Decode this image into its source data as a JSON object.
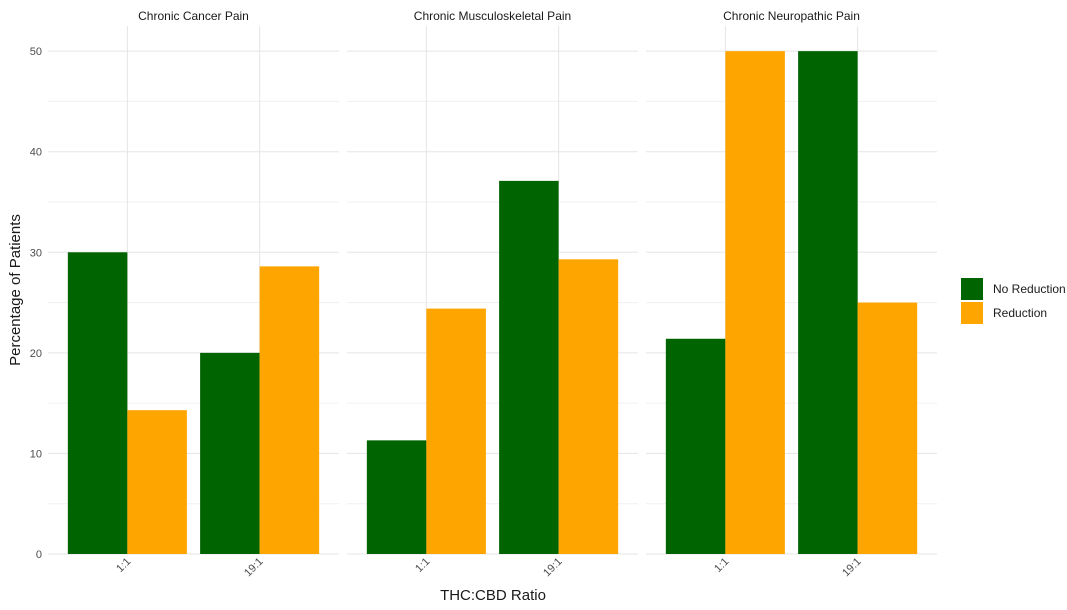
{
  "chart_data": {
    "type": "bar",
    "xlabel": "THC:CBD Ratio",
    "ylabel": "Percentage of Patients",
    "ylim": [
      0,
      52.5
    ],
    "yticks": [
      0,
      10,
      20,
      30,
      40,
      50
    ],
    "categories": [
      "1:1",
      "19:1"
    ],
    "legend": {
      "placement": "right",
      "entries": [
        {
          "name": "No Reduction",
          "color": "#006400"
        },
        {
          "name": "Reduction",
          "color": "#FFA500"
        }
      ]
    },
    "panels": [
      {
        "title": "Chronic Cancer Pain",
        "series": [
          {
            "name": "No Reduction",
            "values": [
              30,
              20
            ]
          },
          {
            "name": "Reduction",
            "values": [
              14.3,
              28.6
            ]
          }
        ]
      },
      {
        "title": "Chronic Musculoskeletal Pain",
        "series": [
          {
            "name": "No Reduction",
            "values": [
              11.3,
              37.1
            ]
          },
          {
            "name": "Reduction",
            "values": [
              24.4,
              29.3
            ]
          }
        ]
      },
      {
        "title": "Chronic Neuropathic Pain",
        "series": [
          {
            "name": "No Reduction",
            "values": [
              21.4,
              50
            ]
          },
          {
            "name": "Reduction",
            "values": [
              50,
              25
            ]
          }
        ]
      }
    ]
  }
}
